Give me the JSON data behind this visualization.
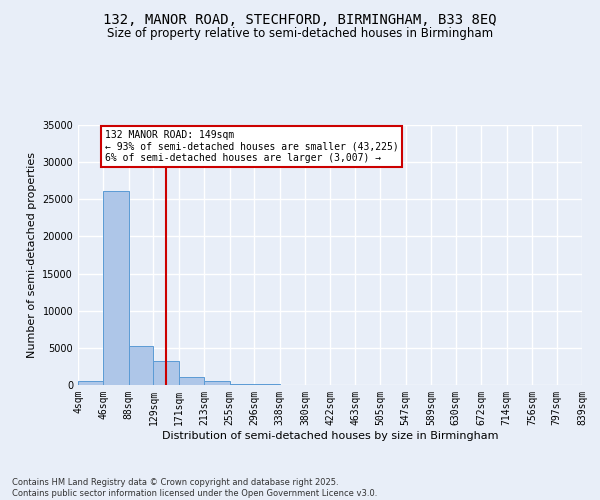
{
  "title": "132, MANOR ROAD, STECHFORD, BIRMINGHAM, B33 8EQ",
  "subtitle": "Size of property relative to semi-detached houses in Birmingham",
  "xlabel": "Distribution of semi-detached houses by size in Birmingham",
  "ylabel": "Number of semi-detached properties",
  "footer": "Contains HM Land Registry data © Crown copyright and database right 2025.\nContains public sector information licensed under the Open Government Licence v3.0.",
  "bin_edges": [
    4,
    46,
    88,
    129,
    171,
    213,
    255,
    296,
    338,
    380,
    422,
    463,
    505,
    547,
    589,
    630,
    672,
    714,
    756,
    797,
    839
  ],
  "bin_labels": [
    "4sqm",
    "46sqm",
    "88sqm",
    "129sqm",
    "171sqm",
    "213sqm",
    "255sqm",
    "296sqm",
    "338sqm",
    "380sqm",
    "422sqm",
    "463sqm",
    "505sqm",
    "547sqm",
    "589sqm",
    "630sqm",
    "672sqm",
    "714sqm",
    "756sqm",
    "797sqm",
    "839sqm"
  ],
  "counts": [
    500,
    26100,
    5200,
    3200,
    1100,
    500,
    150,
    80,
    40,
    20,
    10,
    8,
    5,
    4,
    3,
    2,
    1,
    1,
    1,
    1
  ],
  "bar_color": "#aec6e8",
  "bar_edge_color": "#5b9bd5",
  "vline_x": 149,
  "vline_color": "#cc0000",
  "annotation_title": "132 MANOR ROAD: 149sqm",
  "annotation_line1": "← 93% of semi-detached houses are smaller (43,225)",
  "annotation_line2": "6% of semi-detached houses are larger (3,007) →",
  "annotation_box_color": "#ffffff",
  "annotation_box_edge_color": "#cc0000",
  "ylim": [
    0,
    35000
  ],
  "yticks": [
    0,
    5000,
    10000,
    15000,
    20000,
    25000,
    30000,
    35000
  ],
  "bg_color": "#e8eef8",
  "grid_color": "#ffffff",
  "title_fontsize": 10,
  "subtitle_fontsize": 8.5,
  "axis_fontsize": 8,
  "tick_fontsize": 7,
  "footer_fontsize": 6
}
